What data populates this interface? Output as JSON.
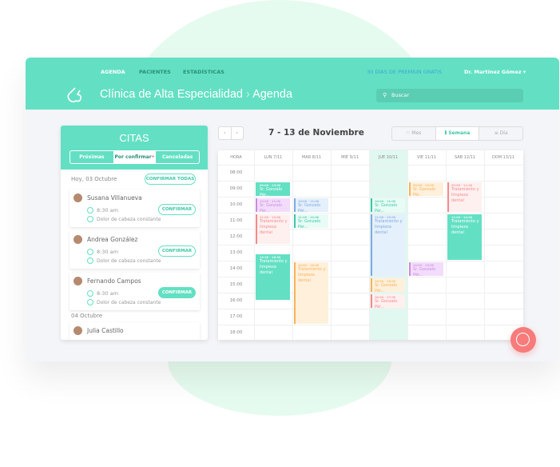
{
  "colors": {
    "accent": "#63e0c3",
    "fab": "#f77b7b",
    "badge": "#f46b6b"
  },
  "nav": {
    "items": [
      "AGENDA",
      "PACIENTES",
      "ESTADÍSTICAS"
    ],
    "premium": "30 DÍAS DE PREMIUN GRATIS",
    "user": "Dr. Martínez Gómez"
  },
  "header": {
    "clinic": "Clínica de Alta Especialidad",
    "separator": "›",
    "page": "Agenda",
    "search_placeholder": "Buscar"
  },
  "citas": {
    "title": "CITAS",
    "tabs": [
      "Próximas",
      "Por confirmar",
      "Canceladas"
    ],
    "active_tab": 1,
    "today": "Hoy, 03 Octubre",
    "confirm_all": "CONFIRMAR TODAS",
    "confirm": "CONFIRMAR",
    "next_day": "04 Octubre",
    "appointments": [
      {
        "name": "Susana Villanueva",
        "time": "8:30 am",
        "reason": "Dolor de cabeza constante"
      },
      {
        "name": "Andrea González",
        "time": "8:30 am",
        "reason": "Dolor de cabeza constante"
      },
      {
        "name": "Fernando Campos",
        "time": "8:30 am",
        "reason": "Dolor de cabeza constante"
      }
    ],
    "next_appointment": "Julia Castillo"
  },
  "calendar": {
    "range": "7 - 13 de Noviembre",
    "views": [
      "Mes",
      "Semana",
      "Día"
    ],
    "active_view": 1,
    "hour_label": "HORA",
    "days": [
      "LUN 7/11",
      "MAR 8/11",
      "MIE 9/11",
      "JUE 10/11",
      "VIE 11/11",
      "SAB 12/11",
      "DOM 13/11"
    ],
    "today_index": 3,
    "hours": [
      "08:00",
      "09:00",
      "10:00",
      "11:00",
      "12:00",
      "13:00",
      "14:00",
      "15:00",
      "16:00",
      "17:00",
      "18:00"
    ],
    "events": [
      {
        "day": 0,
        "start": "09:00",
        "end": "10:00",
        "label": "Sr. Gonzalo Pér...",
        "color": "teal"
      },
      {
        "day": 0,
        "start": "10:00",
        "end": "11:00",
        "label": "Sr. Gonzalo Pér...",
        "color": "purple"
      },
      {
        "day": 0,
        "start": "11:00",
        "end": "13:00",
        "label": "Tratamiento y limpieza dental",
        "color": "red"
      },
      {
        "day": 0,
        "start": "13:30",
        "end": "16:30",
        "label": "Tratamiento y limpieza dental",
        "color": "teal"
      },
      {
        "day": 1,
        "start": "10:00",
        "end": "11:00",
        "label": "Sr. Gonzalo Pér...",
        "color": "blue"
      },
      {
        "day": 1,
        "start": "11:00",
        "end": "12:00",
        "label": "Sr. Gonzalo Pér...",
        "color": "green"
      },
      {
        "day": 1,
        "start": "14:00",
        "end": "18:00",
        "label": "Tratamiento y limpieza dental",
        "color": "orange"
      },
      {
        "day": 3,
        "start": "10:00",
        "end": "11:00",
        "label": "Sr. Gonzalo Pér...",
        "color": "green"
      },
      {
        "day": 3,
        "start": "11:00",
        "end": "15:00",
        "label": "Tratamiento y limpieza dental",
        "color": "blue"
      },
      {
        "day": 3,
        "start": "15:00",
        "end": "16:00",
        "label": "Sr. Gonzalo Pér...",
        "color": "orange"
      },
      {
        "day": 3,
        "start": "16:00",
        "end": "17:00",
        "label": "Sr. Gonzalo Pér...",
        "color": "red"
      },
      {
        "day": 4,
        "start": "09:00",
        "end": "10:00",
        "label": "Sr. Gonzalo Pér...",
        "color": "orange"
      },
      {
        "day": 4,
        "start": "14:00",
        "end": "15:00",
        "label": "Sr. Gonzalo Pér...",
        "color": "purple"
      },
      {
        "day": 5,
        "start": "09:00",
        "end": "11:00",
        "label": "Tratamiento y limpieza dental",
        "color": "red"
      },
      {
        "day": 5,
        "start": "11:00",
        "end": "14:00",
        "label": "Tratamiento y limpieza dental",
        "color": "teal"
      }
    ]
  },
  "fab": "+"
}
